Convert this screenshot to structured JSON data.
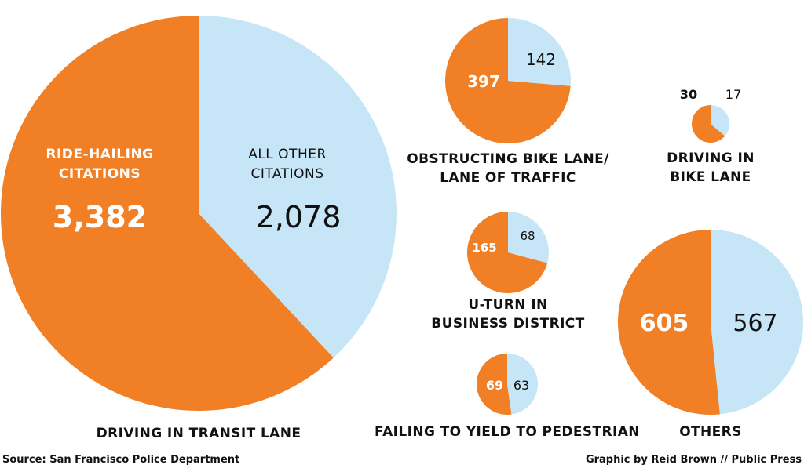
{
  "colors": {
    "ride_hailing": "#f07f26",
    "all_other": "#c6e6f8",
    "text": "#111111"
  },
  "chart_data": [
    {
      "type": "pie",
      "title": "DRIVING IN TRANSIT LANE",
      "title_lines": [
        "DRIVING IN TRANSIT LANE"
      ],
      "categories": [
        "RIDE-HAILING CITATIONS",
        "ALL OTHER CITATIONS"
      ],
      "values": [
        3382,
        2078
      ],
      "value_labels": [
        "3,382",
        "2,078"
      ],
      "category_labels": [
        [
          "RIDE-HAILING",
          "CITATIONS"
        ],
        [
          "ALL OTHER",
          "CITATIONS"
        ]
      ]
    },
    {
      "type": "pie",
      "title": "OBSTRUCTING BIKE LANE/ LANE OF TRAFFIC",
      "title_lines": [
        "OBSTRUCTING BIKE LANE/",
        "LANE OF TRAFFIC"
      ],
      "categories": [
        "RIDE-HAILING CITATIONS",
        "ALL OTHER CITATIONS"
      ],
      "values": [
        397,
        142
      ],
      "value_labels": [
        "397",
        "142"
      ]
    },
    {
      "type": "pie",
      "title": "DRIVING IN BIKE LANE",
      "title_lines": [
        "DRIVING IN",
        "BIKE LANE"
      ],
      "categories": [
        "RIDE-HAILING CITATIONS",
        "ALL OTHER CITATIONS"
      ],
      "values": [
        30,
        17
      ],
      "value_labels": [
        "30",
        "17"
      ]
    },
    {
      "type": "pie",
      "title": "U-TURN IN BUSINESS DISTRICT",
      "title_lines": [
        "U-TURN IN",
        "BUSINESS DISTRICT"
      ],
      "categories": [
        "RIDE-HAILING CITATIONS",
        "ALL OTHER CITATIONS"
      ],
      "values": [
        165,
        68
      ],
      "value_labels": [
        "165",
        "68"
      ]
    },
    {
      "type": "pie",
      "title": "OTHERS",
      "title_lines": [
        "OTHERS"
      ],
      "categories": [
        "RIDE-HAILING CITATIONS",
        "ALL OTHER CITATIONS"
      ],
      "values": [
        605,
        567
      ],
      "value_labels": [
        "605",
        "567"
      ]
    },
    {
      "type": "pie",
      "title": "FAILING TO YIELD TO PEDESTRIAN",
      "title_lines": [
        "FAILING TO YIELD TO PEDESTRIAN"
      ],
      "categories": [
        "RIDE-HAILING CITATIONS",
        "ALL OTHER CITATIONS"
      ],
      "values": [
        69,
        63
      ],
      "value_labels": [
        "69",
        "63"
      ]
    }
  ],
  "footer": {
    "source": "Source: San Francisco Police Department",
    "credit": "Graphic by Reid Brown // Public Press"
  }
}
